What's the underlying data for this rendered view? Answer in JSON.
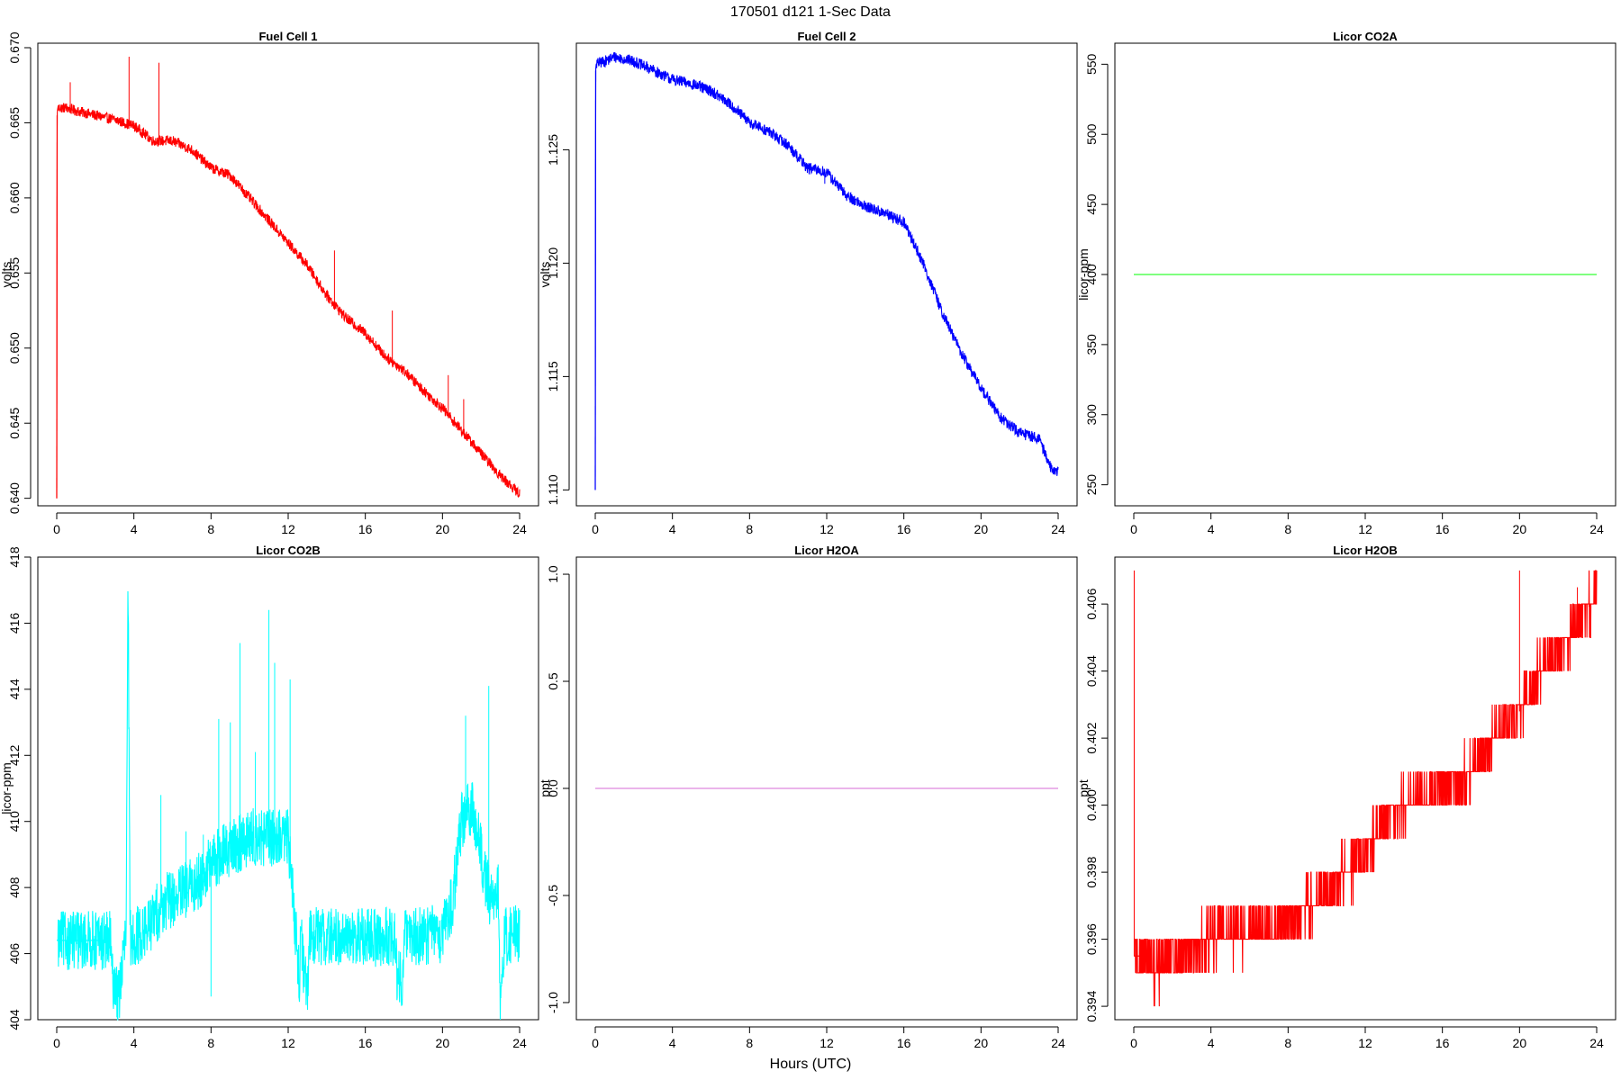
{
  "figure": {
    "title": "170501   d121   1-Sec Data",
    "xlabel": "Hours (UTC)"
  },
  "chart_data": [
    {
      "type": "line",
      "title": "Fuel Cell 1",
      "ylabel": "volts",
      "color": "#ff0000",
      "xlim": [
        0,
        24
      ],
      "ylim": [
        0.6395,
        0.6703
      ],
      "xticks": [
        "0",
        "4",
        "8",
        "12",
        "16",
        "20",
        "24"
      ],
      "yticks": [
        "0.640",
        "0.645",
        "0.650",
        "0.655",
        "0.660",
        "0.665",
        "0.670"
      ],
      "x": [
        0,
        0.02,
        0.05,
        0.5,
        1,
        2,
        3,
        4,
        5,
        6,
        7,
        8,
        9,
        10,
        11,
        12,
        13,
        14,
        15,
        16,
        17,
        18,
        19,
        20,
        21,
        22,
        23,
        24
      ],
      "y": [
        0.64,
        0.6655,
        0.666,
        0.666,
        0.6658,
        0.6655,
        0.6652,
        0.6648,
        0.6638,
        0.6638,
        0.6632,
        0.662,
        0.6615,
        0.66,
        0.6585,
        0.657,
        0.6555,
        0.6535,
        0.652,
        0.651,
        0.6495,
        0.6485,
        0.6472,
        0.646,
        0.6445,
        0.643,
        0.6415,
        0.6403
      ],
      "spikes": [
        [
          3.75,
          0.6694
        ],
        [
          5.3,
          0.669
        ],
        [
          0.7,
          0.6677
        ],
        [
          14.4,
          0.6565
        ],
        [
          17.4,
          0.6525
        ],
        [
          20.3,
          0.6482
        ],
        [
          21.1,
          0.6466
        ]
      ],
      "noise": 0.00035
    },
    {
      "type": "line",
      "title": "Fuel Cell 2",
      "ylabel": "volts",
      "color": "#0000ff",
      "xlim": [
        0,
        24
      ],
      "ylim": [
        1.1093,
        1.1297
      ],
      "xticks": [
        "0",
        "4",
        "8",
        "12",
        "16",
        "20",
        "24"
      ],
      "yticks": [
        "1.110",
        "1.115",
        "1.120",
        "1.125"
      ],
      "x": [
        0,
        0.02,
        0.05,
        0.5,
        1,
        2,
        3,
        4,
        5,
        6,
        7,
        8,
        9,
        10,
        11,
        12,
        13,
        14,
        15,
        16,
        17,
        18,
        19,
        20,
        21,
        22,
        23,
        23.6,
        24
      ],
      "y": [
        1.11,
        1.1285,
        1.1288,
        1.1289,
        1.1291,
        1.1289,
        1.1285,
        1.1281,
        1.1279,
        1.1276,
        1.127,
        1.1262,
        1.1258,
        1.1252,
        1.1242,
        1.124,
        1.123,
        1.1225,
        1.1222,
        1.1218,
        1.12,
        1.1178,
        1.116,
        1.1145,
        1.1132,
        1.1125,
        1.1123,
        1.111,
        1.1108
      ],
      "spikes": [
        [
          11.9,
          1.1235
        ]
      ],
      "noise": 0.00025
    },
    {
      "type": "line",
      "title": "Licor CO2A",
      "ylabel": "licor-ppm",
      "color": "#33ff33",
      "xlim": [
        0,
        24
      ],
      "ylim": [
        235,
        565
      ],
      "xticks": [
        "0",
        "4",
        "8",
        "12",
        "16",
        "20",
        "24"
      ],
      "yticks": [
        "250",
        "300",
        "350",
        "400",
        "450",
        "500",
        "550"
      ],
      "x": [
        0,
        24
      ],
      "y": [
        400,
        400
      ],
      "spikes": [],
      "noise": 0
    },
    {
      "type": "line",
      "title": "Licor CO2B",
      "ylabel": "licor-ppm",
      "color": "#00ffff",
      "xlim": [
        0,
        24
      ],
      "ylim": [
        404,
        418
      ],
      "xticks": [
        "0",
        "4",
        "8",
        "12",
        "16",
        "20",
        "24"
      ],
      "yticks": [
        "404",
        "406",
        "408",
        "410",
        "412",
        "414",
        "416",
        "418"
      ],
      "x": [
        0,
        2.8,
        2.85,
        3.1,
        3.15,
        3.6,
        3.7,
        3.8,
        4.5,
        5.5,
        7,
        8.5,
        10,
        12,
        12.6,
        12.65,
        13,
        13.1,
        14,
        16,
        17.6,
        17.65,
        17.9,
        18.0,
        20,
        20.5,
        21.0,
        21.5,
        22.0,
        22.5,
        22.9,
        23.0,
        23.2,
        23.3,
        24
      ],
      "y": [
        406.4,
        406.4,
        405.2,
        405.2,
        404.4,
        406.6,
        417.4,
        406.5,
        406.6,
        407.5,
        408,
        409,
        409.5,
        409.5,
        405.2,
        406.6,
        404.4,
        406.6,
        406.5,
        406.5,
        406.5,
        405.2,
        405.2,
        406.5,
        406.6,
        407.5,
        410,
        410.5,
        409,
        407.5,
        408,
        404.5,
        406.5,
        406.5,
        406.6
      ],
      "spikes": [
        [
          5.4,
          410.8
        ],
        [
          6.7,
          409.7
        ],
        [
          7.6,
          409.6
        ],
        [
          8.4,
          413.1
        ],
        [
          9.0,
          413.0
        ],
        [
          9.5,
          415.4
        ],
        [
          10.3,
          412.1
        ],
        [
          11.0,
          416.4
        ],
        [
          11.3,
          414.8
        ],
        [
          12.1,
          414.3
        ],
        [
          21.2,
          413.2
        ],
        [
          22.4,
          414.1
        ],
        [
          8.0,
          404.7
        ]
      ],
      "noise": 0.9
    },
    {
      "type": "line",
      "title": "Licor H2OA",
      "ylabel": "ppt",
      "color": "#dd88dd",
      "xlim": [
        0,
        24
      ],
      "ylim": [
        -1.08,
        1.08
      ],
      "xticks": [
        "0",
        "4",
        "8",
        "12",
        "16",
        "20",
        "24"
      ],
      "yticks": [
        "-1.0",
        "-0.5",
        "0.0",
        "0.5",
        "1.0"
      ],
      "x": [
        0,
        24
      ],
      "y": [
        0,
        0
      ],
      "spikes": [],
      "noise": 0
    },
    {
      "type": "line",
      "title": "Licor H2OB",
      "ylabel": "ppt",
      "color": "#ff0000",
      "xlim": [
        0,
        24
      ],
      "ylim": [
        0.3936,
        0.4074
      ],
      "xticks": [
        "0",
        "4",
        "8",
        "12",
        "16",
        "20",
        "24"
      ],
      "yticks": [
        "0.394",
        "0.396",
        "0.398",
        "0.400",
        "0.402",
        "0.404",
        "0.406"
      ],
      "x": [
        0,
        0.5,
        1,
        2,
        4,
        6,
        8,
        10,
        12,
        13,
        14,
        16,
        17,
        18,
        19,
        20,
        21,
        22,
        23,
        24
      ],
      "y": [
        0.3955,
        0.3955,
        0.395,
        0.3955,
        0.396,
        0.3962,
        0.3965,
        0.3975,
        0.3985,
        0.3995,
        0.4,
        0.4005,
        0.4008,
        0.4015,
        0.4022,
        0.4028,
        0.404,
        0.4045,
        0.4055,
        0.4062
      ],
      "spikes": [
        [
          0.02,
          0.407
        ],
        [
          20.0,
          0.407
        ],
        [
          23.6,
          0.407
        ],
        [
          23.0,
          0.4065
        ]
      ],
      "noise": 0.0007,
      "quantize": 0.001
    }
  ]
}
